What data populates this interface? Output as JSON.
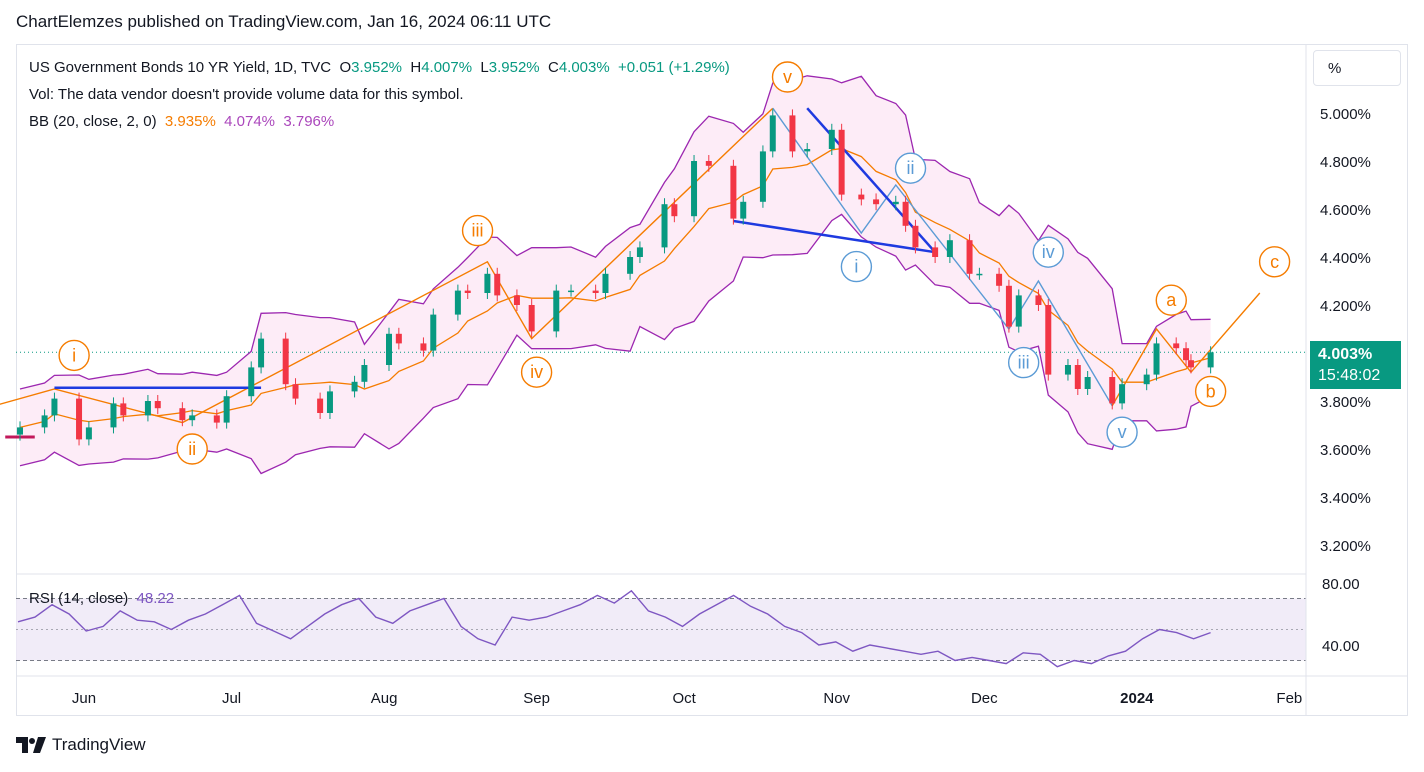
{
  "header": {
    "publisher_line": "ChartElemzes published on TradingView.com, Jan 16, 2024 06:11 UTC"
  },
  "legend": {
    "symbol": "US Government Bonds 10 YR Yield, 1D, TVC",
    "o_label": "O",
    "o_value": "3.952%",
    "h_label": "H",
    "h_value": "4.007%",
    "l_label": "L",
    "l_value": "3.952%",
    "c_label": "C",
    "c_value": "4.003%",
    "change": "+0.051 (+1.29%)",
    "vol_line": "Vol: The data vendor doesn't provide volume data for this symbol.",
    "bb_label": "BB (20, close, 2, 0)",
    "bb_basis": "3.935%",
    "bb_upper": "4.074%",
    "bb_lower": "3.796%"
  },
  "rsi_legend": {
    "label": "RSI (14, close)",
    "value": "48.22"
  },
  "price_scale_mode": "%",
  "last_price_tag": {
    "price": "4.003%",
    "countdown": "15:48:02"
  },
  "footer": {
    "brand": "TradingView"
  },
  "colors": {
    "up": "#089981",
    "down": "#f23645",
    "bb_basis": "#f57c00",
    "bb_band": "#9c27b0",
    "bb_fill": "#fce4f3",
    "wave_orange": "#f57c00",
    "wave_blue": "#5b9bd5",
    "trend_blue": "#1e3ae0",
    "rsi_line": "#7e57c2",
    "rsi_fill": "#ede7f6"
  },
  "chart_data": {
    "type": "candlestick",
    "title": "US Government Bonds 10 YR Yield, 1D, TVC",
    "x_ticks": [
      "Jun",
      "Jul",
      "Aug",
      "Sep",
      "Oct",
      "Nov",
      "Dec",
      "2024",
      "Feb"
    ],
    "y_ticks": [
      "5.000%",
      "4.800%",
      "4.600%",
      "4.400%",
      "4.200%",
      "3.800%",
      "3.600%",
      "3.400%",
      "3.200%"
    ],
    "ylim": [
      3.12,
      5.22
    ],
    "close_series": [
      {
        "date": "2023-05-19",
        "close": 3.69
      },
      {
        "date": "2023-05-24",
        "close": 3.74
      },
      {
        "date": "2023-05-26",
        "close": 3.81
      },
      {
        "date": "2023-05-31",
        "close": 3.64
      },
      {
        "date": "2023-06-02",
        "close": 3.69
      },
      {
        "date": "2023-06-07",
        "close": 3.79
      },
      {
        "date": "2023-06-09",
        "close": 3.74
      },
      {
        "date": "2023-06-14",
        "close": 3.8
      },
      {
        "date": "2023-06-16",
        "close": 3.77
      },
      {
        "date": "2023-06-21",
        "close": 3.72
      },
      {
        "date": "2023-06-23",
        "close": 3.74
      },
      {
        "date": "2023-06-28",
        "close": 3.71
      },
      {
        "date": "2023-06-30",
        "close": 3.82
      },
      {
        "date": "2023-07-05",
        "close": 3.94
      },
      {
        "date": "2023-07-07",
        "close": 4.06
      },
      {
        "date": "2023-07-12",
        "close": 3.87
      },
      {
        "date": "2023-07-14",
        "close": 3.81
      },
      {
        "date": "2023-07-19",
        "close": 3.75
      },
      {
        "date": "2023-07-21",
        "close": 3.84
      },
      {
        "date": "2023-07-26",
        "close": 3.88
      },
      {
        "date": "2023-07-28",
        "close": 3.95
      },
      {
        "date": "2023-08-02",
        "close": 4.08
      },
      {
        "date": "2023-08-04",
        "close": 4.04
      },
      {
        "date": "2023-08-09",
        "close": 4.01
      },
      {
        "date": "2023-08-11",
        "close": 4.16
      },
      {
        "date": "2023-08-16",
        "close": 4.26
      },
      {
        "date": "2023-08-18",
        "close": 4.25
      },
      {
        "date": "2023-08-22",
        "close": 4.33
      },
      {
        "date": "2023-08-24",
        "close": 4.24
      },
      {
        "date": "2023-08-28",
        "close": 4.2
      },
      {
        "date": "2023-08-31",
        "close": 4.09
      },
      {
        "date": "2023-09-05",
        "close": 4.26
      },
      {
        "date": "2023-09-08",
        "close": 4.26
      },
      {
        "date": "2023-09-13",
        "close": 4.25
      },
      {
        "date": "2023-09-15",
        "close": 4.33
      },
      {
        "date": "2023-09-20",
        "close": 4.4
      },
      {
        "date": "2023-09-22",
        "close": 4.44
      },
      {
        "date": "2023-09-27",
        "close": 4.62
      },
      {
        "date": "2023-09-29",
        "close": 4.57
      },
      {
        "date": "2023-10-03",
        "close": 4.8
      },
      {
        "date": "2023-10-06",
        "close": 4.78
      },
      {
        "date": "2023-10-11",
        "close": 4.56
      },
      {
        "date": "2023-10-13",
        "close": 4.63
      },
      {
        "date": "2023-10-17",
        "close": 4.84
      },
      {
        "date": "2023-10-19",
        "close": 4.99
      },
      {
        "date": "2023-10-23",
        "close": 4.84
      },
      {
        "date": "2023-10-26",
        "close": 4.85
      },
      {
        "date": "2023-10-31",
        "close": 4.93
      },
      {
        "date": "2023-11-02",
        "close": 4.66
      },
      {
        "date": "2023-11-06",
        "close": 4.64
      },
      {
        "date": "2023-11-09",
        "close": 4.62
      },
      {
        "date": "2023-11-13",
        "close": 4.63
      },
      {
        "date": "2023-11-15",
        "close": 4.53
      },
      {
        "date": "2023-11-17",
        "close": 4.44
      },
      {
        "date": "2023-11-21",
        "close": 4.4
      },
      {
        "date": "2023-11-24",
        "close": 4.47
      },
      {
        "date": "2023-11-28",
        "close": 4.33
      },
      {
        "date": "2023-11-30",
        "close": 4.33
      },
      {
        "date": "2023-12-04",
        "close": 4.28
      },
      {
        "date": "2023-12-06",
        "close": 4.11
      },
      {
        "date": "2023-12-08",
        "close": 4.24
      },
      {
        "date": "2023-12-12",
        "close": 4.2
      },
      {
        "date": "2023-12-14",
        "close": 3.91
      },
      {
        "date": "2023-12-18",
        "close": 3.95
      },
      {
        "date": "2023-12-20",
        "close": 3.85
      },
      {
        "date": "2023-12-22",
        "close": 3.9
      },
      {
        "date": "2023-12-27",
        "close": 3.79
      },
      {
        "date": "2023-12-29",
        "close": 3.87
      },
      {
        "date": "2024-01-03",
        "close": 3.91
      },
      {
        "date": "2024-01-05",
        "close": 4.04
      },
      {
        "date": "2024-01-09",
        "close": 4.02
      },
      {
        "date": "2024-01-11",
        "close": 3.97
      },
      {
        "date": "2024-01-12",
        "close": 3.94
      },
      {
        "date": "2024-01-16",
        "close": 4.003
      }
    ],
    "bollinger_bands": {
      "length": 20,
      "source": "close",
      "mult": 2,
      "offset": 0,
      "basis_last": 3.935,
      "upper_last": 4.074,
      "lower_last": 3.796
    },
    "wave_labels": [
      {
        "label": "i",
        "color": "orange"
      },
      {
        "label": "ii",
        "color": "orange"
      },
      {
        "label": "iii",
        "color": "orange"
      },
      {
        "label": "iv",
        "color": "orange"
      },
      {
        "label": "v",
        "color": "orange"
      },
      {
        "label": "i",
        "color": "blue"
      },
      {
        "label": "ii",
        "color": "blue"
      },
      {
        "label": "iii",
        "color": "blue"
      },
      {
        "label": "iv",
        "color": "blue"
      },
      {
        "label": "v",
        "color": "blue"
      },
      {
        "label": "a",
        "color": "orange"
      },
      {
        "label": "b",
        "color": "orange"
      },
      {
        "label": "c",
        "color": "orange"
      }
    ],
    "rsi": {
      "length": 14,
      "source": "close",
      "last": 48.22,
      "y_ticks": [
        "80.00",
        "40.00"
      ],
      "bands": [
        70,
        30
      ],
      "values": [
        55,
        58,
        66,
        60,
        49,
        52,
        62,
        56,
        55,
        50,
        56,
        60,
        66,
        72,
        54,
        49,
        44,
        52,
        60,
        66,
        70,
        58,
        54,
        62,
        66,
        70,
        52,
        44,
        40,
        58,
        56,
        58,
        62,
        66,
        72,
        67,
        75,
        62,
        58,
        52,
        60,
        66,
        72,
        65,
        60,
        52,
        48,
        40,
        42,
        36,
        40,
        38,
        36,
        34,
        36,
        30,
        32,
        30,
        28,
        35,
        34,
        26,
        30,
        28,
        33,
        36,
        44,
        50,
        48,
        44,
        48
      ]
    }
  }
}
